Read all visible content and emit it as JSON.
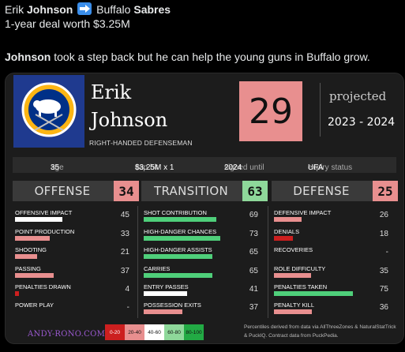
{
  "post": {
    "line1_first": "Erik ",
    "line1_last": "Johnson",
    "line1_team_city": " Buffalo ",
    "line1_team_name": "Sabres",
    "line2": "1-year deal worth $3.25M",
    "line3_bold": "Johnson",
    "line3_rest": " took a step back but he can help the young guns in Buffalo grow."
  },
  "card": {
    "first_name": "Erik",
    "last_name": "Johnson",
    "position": "RIGHT-HANDED DEFENSEMAN",
    "projection": "29",
    "projected_label": "projected",
    "season": "2023 - 2024",
    "info": {
      "age_label": "age",
      "age": "35",
      "cap_label": "cap hit",
      "cap": "$3.25M x 1",
      "signed_label": "signed until",
      "signed": "2024",
      "expiry_label": "expiry status",
      "expiry": "UFA"
    },
    "columns": [
      {
        "name": "OFFENSE",
        "score": "34",
        "color": "#e88f8f",
        "metrics": [
          {
            "label": "OFFENSIVE IMPACT",
            "value": "45",
            "pct": 45,
            "color": "#ffffff"
          },
          {
            "label": "POINT PRODUCTION",
            "value": "33",
            "pct": 33,
            "color": "#e88f8f"
          },
          {
            "label": "SHOOTING",
            "value": "21",
            "pct": 21,
            "color": "#e88f8f"
          },
          {
            "label": "PASSING",
            "value": "37",
            "pct": 37,
            "color": "#e88f8f"
          },
          {
            "label": "PENALTIES DRAWN",
            "value": "4",
            "pct": 4,
            "color": "#cc1f1f"
          },
          {
            "label": "POWER PLAY",
            "value": "-",
            "pct": 0,
            "color": "#e88f8f"
          }
        ]
      },
      {
        "name": "TRANSITION",
        "score": "63",
        "color": "#8ed89a",
        "metrics": [
          {
            "label": "SHOT CONTRIBUTION",
            "value": "69",
            "pct": 69,
            "color": "#4fcf7a"
          },
          {
            "label": "HIGH-DANGER CHANCES",
            "value": "73",
            "pct": 73,
            "color": "#4fcf7a"
          },
          {
            "label": "HIGH-DANGER ASSISTS",
            "value": "65",
            "pct": 65,
            "color": "#4fcf7a"
          },
          {
            "label": "CARRIES",
            "value": "65",
            "pct": 65,
            "color": "#4fcf7a"
          },
          {
            "label": "ENTRY PASSES",
            "value": "41",
            "pct": 41,
            "color": "#ffffff"
          },
          {
            "label": "POSSESSION EXITS",
            "value": "37",
            "pct": 37,
            "color": "#e88f8f"
          }
        ]
      },
      {
        "name": "DEFENSE",
        "score": "25",
        "color": "#e88f8f",
        "metrics": [
          {
            "label": "DEFENSIVE IMPACT",
            "value": "26",
            "pct": 26,
            "color": "#e88f8f"
          },
          {
            "label": "DENIALS",
            "value": "18",
            "pct": 18,
            "color": "#cc1f1f"
          },
          {
            "label": "RECOVERIES",
            "value": "-",
            "pct": 0,
            "color": "#e88f8f"
          },
          {
            "label": "ROLE DIFFICULTY",
            "value": "35",
            "pct": 35,
            "color": "#e88f8f"
          },
          {
            "label": "PENALTIES TAKEN",
            "value": "75",
            "pct": 75,
            "color": "#4fcf7a"
          },
          {
            "label": "PENALTY KILL",
            "value": "36",
            "pct": 36,
            "color": "#e88f8f"
          }
        ]
      }
    ],
    "site": "ANDY-RONO.COM",
    "legend": [
      {
        "label": "0-20",
        "color": "#cc1f1f"
      },
      {
        "label": "20-40",
        "color": "#e88f8f"
      },
      {
        "label": "40-60",
        "color": "#ffffff"
      },
      {
        "label": "60-80",
        "color": "#8ed89a"
      },
      {
        "label": "80-100",
        "color": "#22aa44"
      }
    ],
    "footnote1": "Percentiles derived from data via AllThreeZones & NaturalStatTrick",
    "footnote2": "& PuckIQ. Contract data from PuckPedia."
  }
}
